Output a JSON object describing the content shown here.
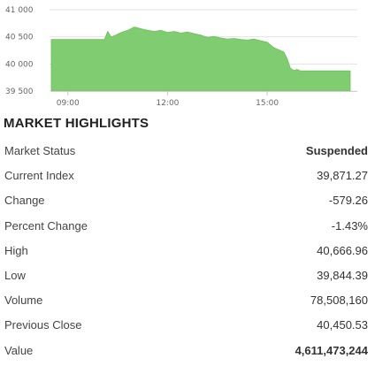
{
  "chart_data": {
    "type": "area",
    "y_ticks": [
      41000,
      40500,
      40000,
      39500
    ],
    "y_tick_labels": [
      "41 000",
      "40 500",
      "40 000",
      "39 500"
    ],
    "ylim": [
      39500,
      41000
    ],
    "x_ticks": [
      "09:00",
      "12:00",
      "15:00"
    ],
    "x_tick_hours": [
      9,
      12,
      15
    ],
    "xlim_hours": [
      8.5,
      17.5
    ],
    "fill_color": "#80cc70",
    "series": [
      {
        "x": [
          8.5,
          10.1,
          10.2,
          10.3,
          10.4,
          10.6,
          10.8,
          11.0,
          11.2,
          11.4,
          11.6,
          11.8,
          12.0,
          12.2,
          12.4,
          12.6,
          12.8,
          13.0,
          13.2,
          13.4,
          13.6,
          13.8,
          14.0,
          14.2,
          14.4,
          14.6,
          14.8,
          15.0,
          15.2,
          15.5,
          15.6,
          15.7,
          15.8,
          15.9,
          16.0,
          17.5
        ],
        "y": [
          40450,
          40450,
          40600,
          40500,
          40520,
          40580,
          40620,
          40680,
          40650,
          40620,
          40600,
          40620,
          40580,
          40600,
          40570,
          40590,
          40560,
          40530,
          40490,
          40510,
          40480,
          40460,
          40470,
          40450,
          40440,
          40460,
          40430,
          40400,
          40300,
          40220,
          40100,
          39920,
          39880,
          39900,
          39871,
          39871
        ]
      }
    ]
  },
  "section_title": "MARKET HIGHLIGHTS",
  "highlights": [
    {
      "label": "Market Status",
      "value": "Suspended"
    },
    {
      "label": "Current Index",
      "value": "39,871.27"
    },
    {
      "label": "Change",
      "value": "-579.26"
    },
    {
      "label": "Percent Change",
      "value": "-1.43%"
    },
    {
      "label": "High",
      "value": "40,666.96"
    },
    {
      "label": "Low",
      "value": "39,844.39"
    },
    {
      "label": "Volume",
      "value": "78,508,160"
    },
    {
      "label": "Previous Close",
      "value": "40,450.53"
    },
    {
      "label": "Value",
      "value": "4,611,473,244"
    }
  ]
}
